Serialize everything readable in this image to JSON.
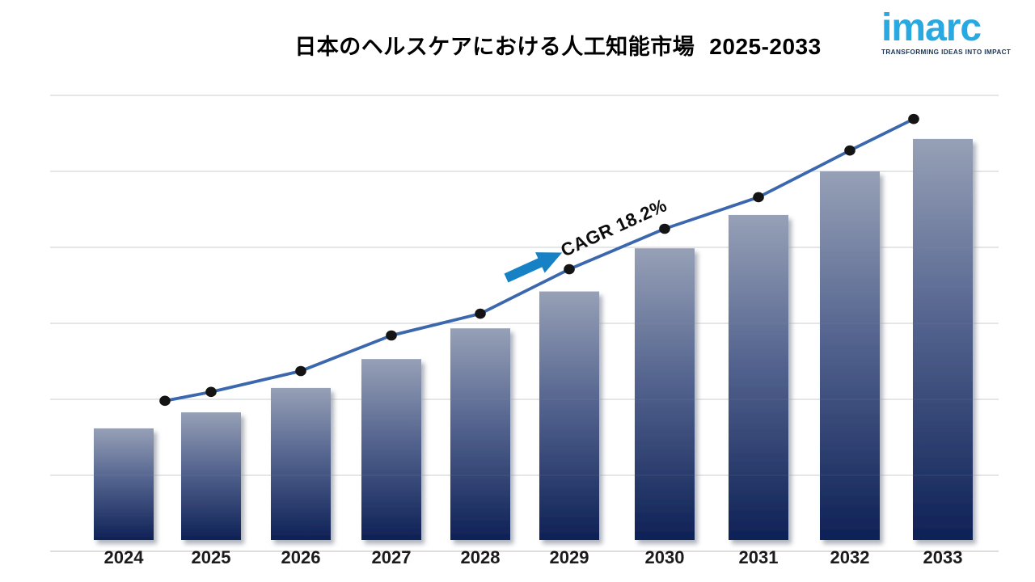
{
  "header": {
    "title_jp": "日本のヘルスケアにおける人工知能市場",
    "title_range": "2025-2033"
  },
  "logo": {
    "brand": "imarc",
    "tagline": "TRANSFORMING IDEAS INTO IMPACT",
    "brand_color": "#29a9e1",
    "tagline_color": "#1c3557"
  },
  "chart_data": {
    "type": "bar+line combo",
    "title": "日本のヘルスケアにおける人工知能市場 2025-2033",
    "categories": [
      "2024",
      "2025",
      "2026",
      "2027",
      "2028",
      "2029",
      "2030",
      "2031",
      "2032",
      "2033"
    ],
    "series": [
      {
        "name": "market-size-bars",
        "type": "bar",
        "values": [
          25.1,
          28.7,
          34.2,
          40.7,
          47.6,
          55.9,
          65.6,
          73.1,
          82.9,
          90.2
        ]
      },
      {
        "name": "trend-line",
        "type": "line",
        "values": [
          31.3,
          33.3,
          38.0,
          46.0,
          50.9,
          60.9,
          70.0,
          77.1,
          87.6,
          94.7
        ]
      }
    ],
    "value_scale": "relative 0-100 of plot height (y-axis is unlabeled in the figure)",
    "ylim": [
      0,
      100
    ],
    "grid": "horizontal gridlines, no y-axis tick labels, no legend",
    "annotation": {
      "label": "CAGR  18.2%"
    },
    "colors": {
      "bar_gradient_top": "#96a0b6",
      "bar_gradient_mid": "#54648f",
      "bar_gradient_bottom": "#0e2156",
      "line": "#3b67ae",
      "marker": "#141414",
      "arrow": "#1781c5",
      "gridline": "#d9d9d9",
      "axis_line": "#c9c9c9"
    }
  }
}
